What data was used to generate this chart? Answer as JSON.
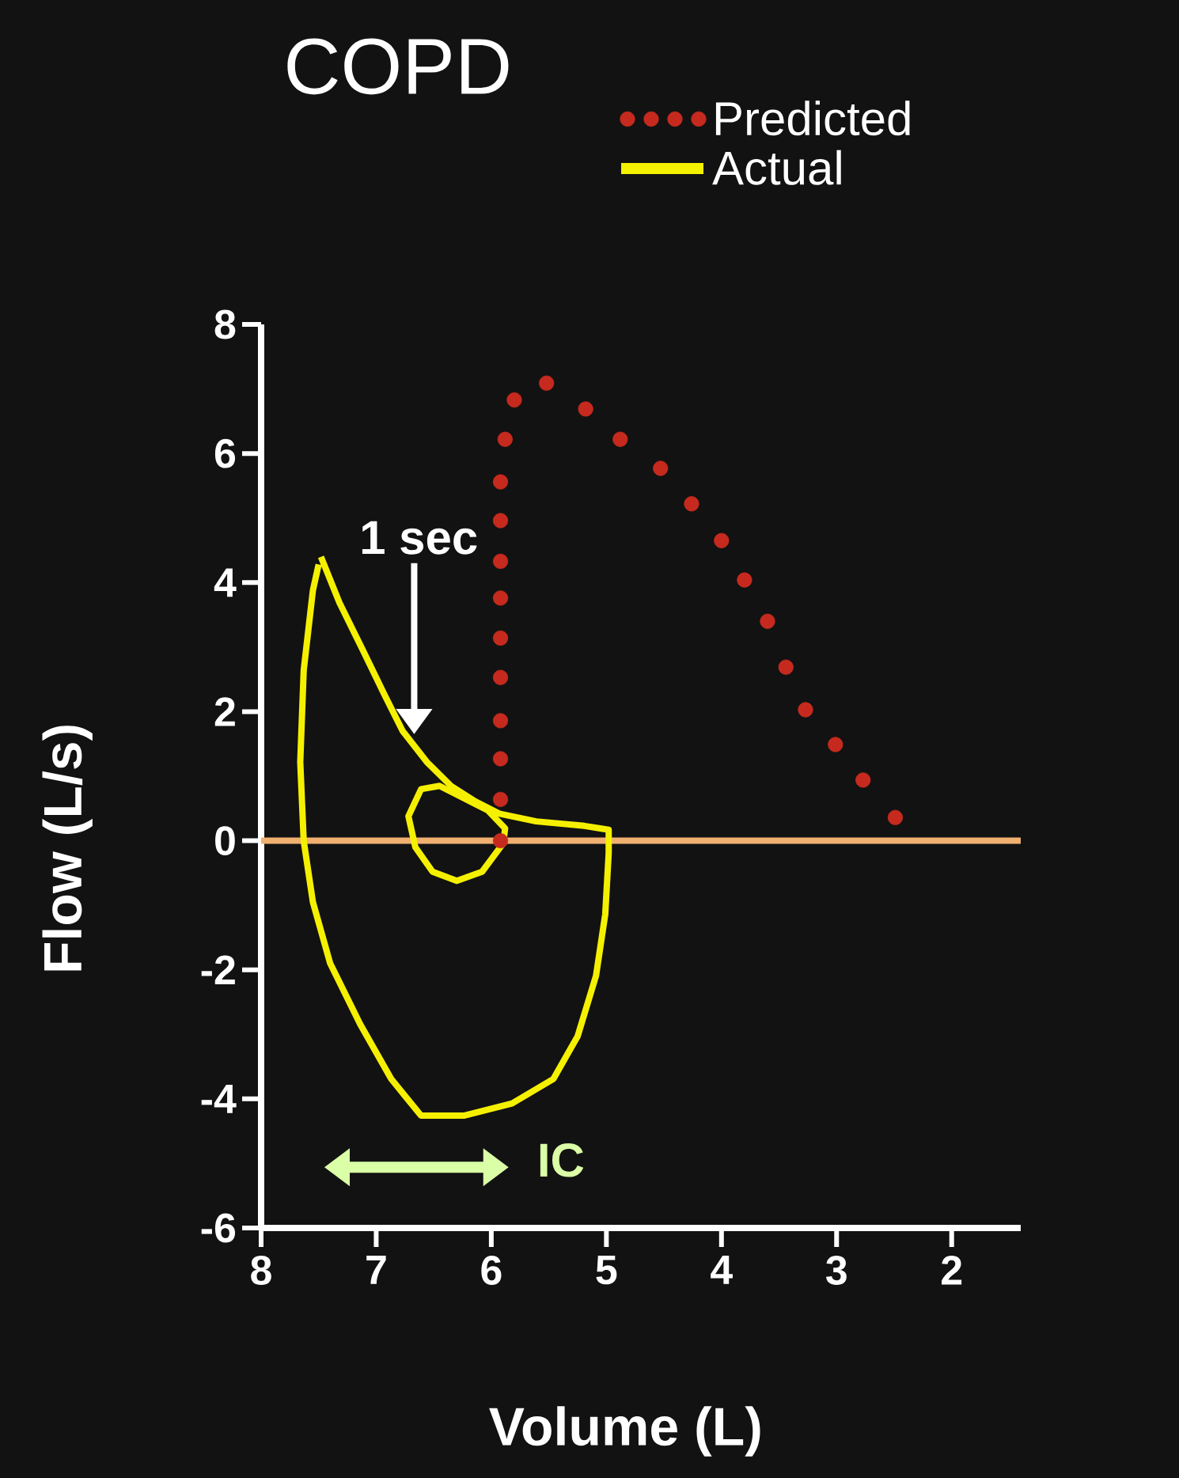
{
  "chart_data": {
    "type": "line",
    "title": "COPD",
    "xlabel": "Volume (L)",
    "ylabel": "Flow (L/s)",
    "xlim": [
      8,
      1.4
    ],
    "ylim": [
      -6,
      8
    ],
    "xticks": [
      8,
      7,
      6,
      5,
      4,
      3,
      2
    ],
    "yticks": [
      -6,
      -4,
      -2,
      0,
      2,
      4,
      6,
      8
    ],
    "legend": "top right",
    "ref_lines": [
      {
        "axis": "y",
        "value": 0,
        "color": "#f0b070"
      }
    ],
    "annotations": [
      "1 sec",
      "IC"
    ],
    "series": [
      {
        "name": "Predicted",
        "type": "scatter",
        "marker": "circle",
        "color": "#c62a1e",
        "x": [
          5.92,
          5.92,
          5.92,
          5.92,
          5.92,
          5.92,
          5.92,
          5.92,
          5.92,
          5.92,
          5.88,
          5.8,
          5.52,
          5.18,
          4.88,
          4.53,
          4.26,
          4.0,
          3.8,
          3.6,
          3.44,
          3.27,
          3.01,
          2.77,
          2.49
        ],
        "values": [
          0,
          0.64,
          1.27,
          1.86,
          2.53,
          3.14,
          3.76,
          4.33,
          4.96,
          5.56,
          6.22,
          6.83,
          7.09,
          6.69,
          6.22,
          5.77,
          5.22,
          4.65,
          4.04,
          3.4,
          2.69,
          2.03,
          1.49,
          0.94,
          0.36
        ]
      },
      {
        "name": "Actual",
        "line_style": "solid",
        "color": "#f5f000",
        "x": [
          7.48,
          7.32,
          7.11,
          6.93,
          6.77,
          6.56,
          6.35,
          6.14,
          5.93,
          5.61,
          5.19,
          4.98,
          4.98,
          5.01,
          5.09,
          5.25,
          5.46,
          5.82,
          6.24,
          6.61,
          6.87,
          7.14,
          7.4,
          7.55,
          7.63,
          7.66,
          7.63,
          7.55,
          7.5
        ],
        "values": [
          4.4,
          3.69,
          2.93,
          2.27,
          1.7,
          1.22,
          0.85,
          0.61,
          0.42,
          0.3,
          0.23,
          0.17,
          -0.19,
          -1.14,
          -2.09,
          -3.03,
          -3.69,
          -4.07,
          -4.26,
          -4.26,
          -3.69,
          -2.84,
          -1.9,
          -0.95,
          0,
          1.22,
          2.64,
          3.88,
          4.28
        ]
      },
      {
        "line_style": "solid",
        "color": "#f5f000",
        "x": [
          5.88,
          6.08,
          6.3,
          6.51,
          6.66,
          6.72,
          6.61,
          6.45,
          6.24,
          6.03,
          5.88,
          5.89
        ],
        "values": [
          0,
          -0.48,
          -0.62,
          -0.48,
          -0.1,
          0.38,
          0.8,
          0.85,
          0.66,
          0.47,
          0.19,
          0.05
        ]
      }
    ]
  }
}
